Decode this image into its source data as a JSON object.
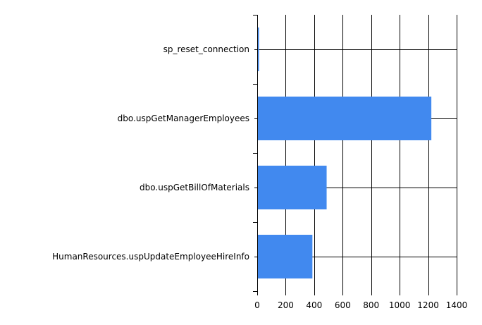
{
  "chart_data": {
    "type": "bar",
    "orientation": "horizontal",
    "categories": [
      "sp_reset_connection",
      "dbo.uspGetManagerEmployees",
      "dbo.uspGetBillOfMaterials",
      "HumanResources.uspUpdateEmployeeHireInfo"
    ],
    "values": [
      10,
      1220,
      485,
      385
    ],
    "title": "",
    "xlabel": "",
    "ylabel": "",
    "xlim": [
      0,
      1400
    ],
    "xticks": [
      0,
      200,
      400,
      600,
      800,
      1000,
      1200,
      1400
    ],
    "grid": true,
    "legend": "none",
    "bar_color": "#4189ef"
  }
}
